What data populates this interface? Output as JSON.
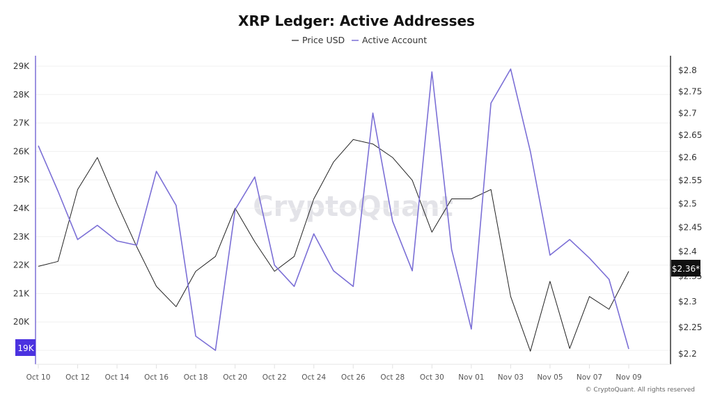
{
  "chart_data": {
    "type": "line",
    "title": "XRP Ledger: Active Addresses",
    "legend": {
      "placement": "top-center",
      "entries": [
        "Price USD",
        "Active Account"
      ]
    },
    "x": [
      "Oct 10",
      "Oct 11",
      "Oct 12",
      "Oct 13",
      "Oct 14",
      "Oct 15",
      "Oct 16",
      "Oct 17",
      "Oct 18",
      "Oct 19",
      "Oct 20",
      "Oct 21",
      "Oct 22",
      "Oct 23",
      "Oct 24",
      "Oct 25",
      "Oct 26",
      "Oct 27",
      "Oct 28",
      "Oct 29",
      "Oct 30",
      "Oct 31",
      "Nov 01",
      "Nov 02",
      "Nov 03",
      "Nov 04",
      "Nov 05",
      "Nov 06",
      "Nov 07",
      "Nov 08",
      "Nov 09"
    ],
    "x_tick_labels": [
      "Oct 10",
      "Oct 12",
      "Oct 14",
      "Oct 16",
      "Oct 18",
      "Oct 20",
      "Oct 22",
      "Oct 24",
      "Oct 26",
      "Oct 28",
      "Oct 30",
      "Nov 01",
      "Nov 03",
      "Nov 05",
      "Nov 07",
      "Nov 09"
    ],
    "series": [
      {
        "name": "Price USD",
        "axis": "right",
        "color": "#222222",
        "values": [
          2.37,
          2.38,
          2.53,
          2.6,
          2.5,
          2.41,
          2.33,
          2.29,
          2.36,
          2.39,
          2.49,
          2.42,
          2.36,
          2.39,
          2.51,
          2.59,
          2.64,
          2.63,
          2.6,
          2.55,
          2.44,
          2.51,
          2.51,
          2.53,
          2.31,
          2.205,
          2.34,
          2.21,
          2.31,
          2.285,
          2.36
        ]
      },
      {
        "name": "Active Account",
        "axis": "left",
        "color": "#7B6FD6",
        "values": [
          26200,
          24600,
          22900,
          23400,
          22850,
          22700,
          25300,
          24100,
          19500,
          19000,
          23950,
          25100,
          22000,
          21250,
          23100,
          21800,
          21250,
          27350,
          23550,
          21800,
          28800,
          22550,
          19750,
          27700,
          28900,
          26000,
          22350,
          22900,
          22250,
          21500,
          19050
        ]
      }
    ],
    "left_axis": {
      "ylim": [
        18800,
        29300
      ],
      "ticks": [
        "19K",
        "20K",
        "21K",
        "22K",
        "23K",
        "24K",
        "25K",
        "26K",
        "27K",
        "28K",
        "29K"
      ],
      "tick_values": [
        19000,
        20000,
        21000,
        22000,
        23000,
        24000,
        25000,
        26000,
        27000,
        28000,
        29000
      ],
      "current_badge": "19K",
      "color": "#7B6FD6"
    },
    "right_axis": {
      "scale": "log",
      "ylim": [
        2.18,
        2.83
      ],
      "ticks": [
        "$2.2",
        "$2.25",
        "$2.3",
        "$2.35",
        "$2.4",
        "$2.45",
        "$2.5",
        "$2.55",
        "$2.6",
        "$2.65",
        "$2.7",
        "$2.75",
        "$2.8"
      ],
      "tick_values": [
        2.2,
        2.25,
        2.3,
        2.35,
        2.4,
        2.45,
        2.5,
        2.55,
        2.6,
        2.65,
        2.7,
        2.75,
        2.8
      ],
      "current_badge": "$2.36*"
    },
    "grid": true,
    "watermark": "CryptoQuant",
    "copyright": "© CryptoQuant. All rights reserved"
  }
}
